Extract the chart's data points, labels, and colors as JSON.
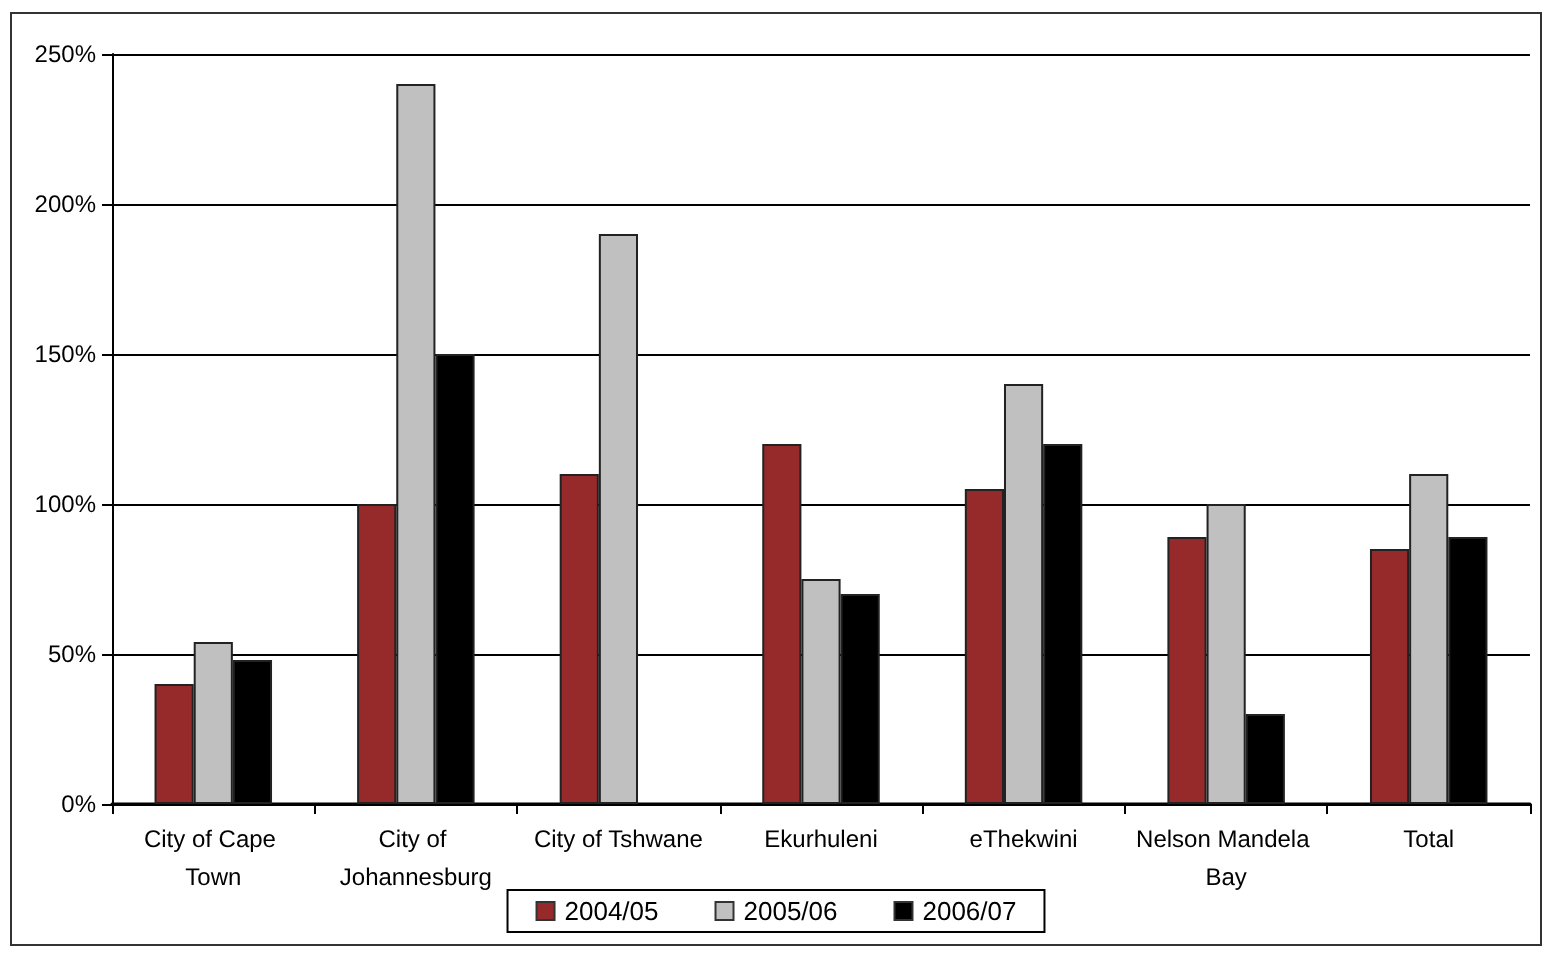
{
  "chart_data": {
    "type": "bar",
    "categories": [
      "City of Cape Town",
      "City of Johannesburg",
      "City of Tshwane",
      "Ekurhuleni",
      "eThekwini",
      "Nelson Mandela Bay",
      "Total"
    ],
    "series": [
      {
        "name": "2004/05",
        "color": "#962a2b",
        "values": [
          40,
          100,
          110,
          120,
          105,
          89,
          85
        ]
      },
      {
        "name": "2005/06",
        "color": "#c0c0c0",
        "values": [
          54,
          240,
          190,
          75,
          140,
          100,
          110
        ]
      },
      {
        "name": "2006/07",
        "color": "#000000",
        "values": [
          48,
          150,
          null,
          70,
          120,
          30,
          89
        ]
      }
    ],
    "ylim": [
      0,
      250
    ],
    "yticks": [
      {
        "value": 0,
        "label": "0%"
      },
      {
        "value": 50,
        "label": "50%"
      },
      {
        "value": 100,
        "label": "100%"
      },
      {
        "value": 150,
        "label": "150%"
      },
      {
        "value": 200,
        "label": "200%"
      },
      {
        "value": 250,
        "label": "250%"
      }
    ],
    "grid": "y",
    "legend": "bottom"
  }
}
